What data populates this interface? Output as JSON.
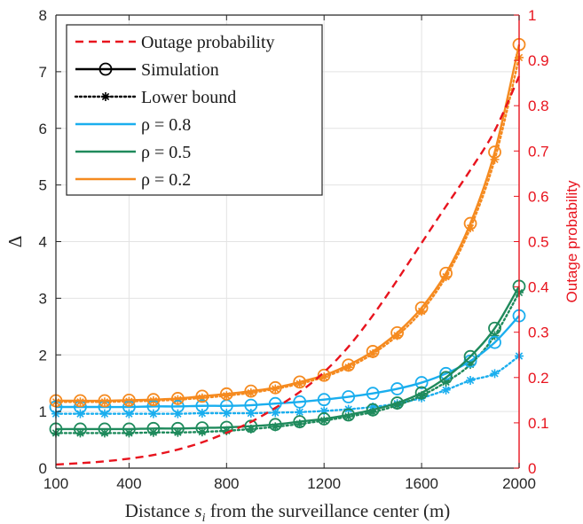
{
  "chart_data": {
    "type": "line",
    "x": [
      100,
      200,
      300,
      400,
      500,
      600,
      700,
      800,
      900,
      1000,
      1100,
      1200,
      1300,
      1400,
      1500,
      1600,
      1700,
      1800,
      1900,
      2000
    ],
    "xlabel": "Distance s_i from the surveillance center (m)",
    "xlabel_parts": {
      "before": "Distance ",
      "var": "s",
      "sub": "i",
      "after": " from the surveillance center (m)"
    },
    "ylabel_left": "Δ",
    "ylabel_right": "Outage probability",
    "xlim": [
      100,
      2000
    ],
    "ylim_left": [
      0,
      8
    ],
    "ylim_right": [
      0,
      1
    ],
    "xticks": [
      100,
      400,
      800,
      1200,
      1600,
      2000
    ],
    "yticks_left": [
      0,
      1,
      2,
      3,
      4,
      5,
      6,
      7,
      8
    ],
    "yticks_right": [
      0,
      0.1,
      0.2,
      0.3,
      0.4,
      0.5,
      0.6,
      0.7,
      0.8,
      0.9,
      1
    ],
    "grid": true,
    "legend_position": "top-left",
    "legend": [
      {
        "label": "Outage probability",
        "style": "dashed",
        "color": "#e8141e"
      },
      {
        "label": "Simulation",
        "style": "solid-circle",
        "color": "#000000"
      },
      {
        "label": "Lower bound",
        "style": "dotted-star",
        "color": "#000000"
      },
      {
        "label": "ρ = 0.8",
        "style": "solid",
        "color": "#1aaeee"
      },
      {
        "label": "ρ = 0.5",
        "style": "solid",
        "color": "#1f8a5c"
      },
      {
        "label": "ρ = 0.2",
        "style": "solid",
        "color": "#f58a1f"
      }
    ],
    "outage_probability": {
      "axis": "right",
      "color": "#e8141e",
      "values": [
        0.008,
        0.011,
        0.015,
        0.021,
        0.029,
        0.041,
        0.057,
        0.078,
        0.102,
        0.133,
        0.168,
        0.212,
        0.268,
        0.337,
        0.415,
        0.497,
        0.578,
        0.658,
        0.745,
        0.865
      ]
    },
    "series": [
      {
        "name": "ρ = 0.8",
        "type": "simulation",
        "color": "#1aaeee",
        "values": [
          1.08,
          1.08,
          1.08,
          1.08,
          1.09,
          1.09,
          1.1,
          1.1,
          1.11,
          1.14,
          1.17,
          1.21,
          1.26,
          1.32,
          1.4,
          1.51,
          1.67,
          1.89,
          2.22,
          2.69
        ]
      },
      {
        "name": "ρ = 0.8",
        "type": "lower_bound",
        "color": "#1aaeee",
        "values": [
          0.96,
          0.96,
          0.96,
          0.96,
          0.96,
          0.96,
          0.97,
          0.97,
          0.97,
          0.98,
          0.99,
          1.01,
          1.04,
          1.08,
          1.14,
          1.24,
          1.38,
          1.55,
          1.67,
          1.98
        ]
      },
      {
        "name": "ρ = 0.5",
        "type": "simulation",
        "color": "#1f8a5c",
        "values": [
          0.69,
          0.69,
          0.69,
          0.69,
          0.7,
          0.7,
          0.71,
          0.72,
          0.74,
          0.77,
          0.82,
          0.87,
          0.94,
          1.03,
          1.15,
          1.33,
          1.6,
          1.97,
          2.47,
          3.21
        ]
      },
      {
        "name": "ρ = 0.5",
        "type": "lower_bound",
        "color": "#1f8a5c",
        "values": [
          0.62,
          0.62,
          0.62,
          0.62,
          0.63,
          0.63,
          0.64,
          0.66,
          0.69,
          0.73,
          0.78,
          0.84,
          0.91,
          0.99,
          1.11,
          1.28,
          1.52,
          1.83,
          2.34,
          3.1
        ]
      },
      {
        "name": "ρ = 0.2",
        "type": "simulation",
        "color": "#f58a1f",
        "values": [
          1.19,
          1.19,
          1.19,
          1.2,
          1.21,
          1.23,
          1.27,
          1.31,
          1.36,
          1.42,
          1.52,
          1.64,
          1.82,
          2.06,
          2.39,
          2.83,
          3.44,
          4.32,
          5.58,
          7.48
        ]
      },
      {
        "name": "ρ = 0.2",
        "type": "lower_bound",
        "color": "#f58a1f",
        "values": [
          1.17,
          1.17,
          1.17,
          1.18,
          1.19,
          1.21,
          1.24,
          1.28,
          1.33,
          1.4,
          1.49,
          1.61,
          1.78,
          2.02,
          2.34,
          2.77,
          3.38,
          4.24,
          5.45,
          7.25
        ]
      }
    ]
  }
}
